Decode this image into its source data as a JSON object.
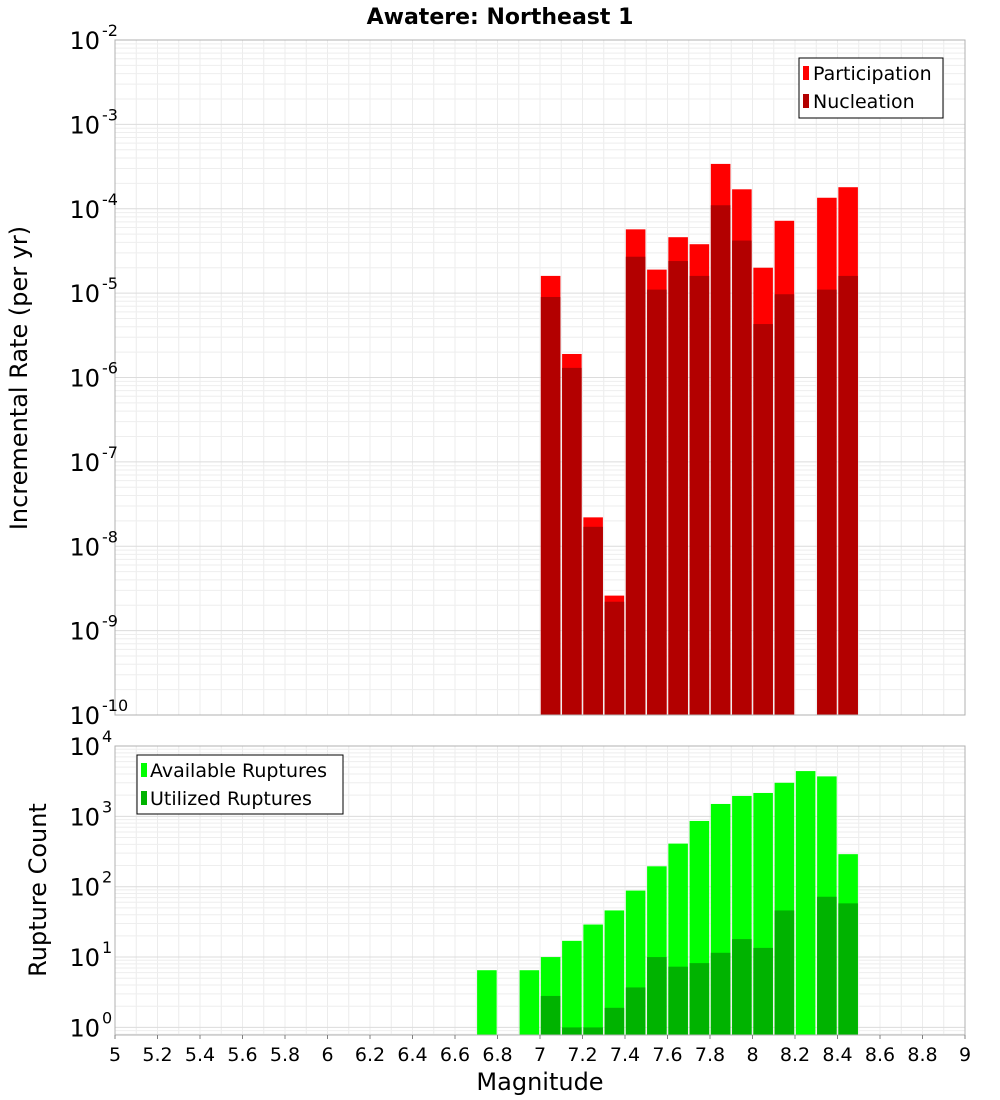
{
  "chart_data": [
    {
      "type": "bar",
      "title": "Awatere: Northeast 1",
      "xlabel": "",
      "ylabel": "Incremental Rate (per yr)",
      "yscale": "log",
      "ylim": [
        1e-10,
        0.01
      ],
      "xlim": [
        5,
        9
      ],
      "ytick_exponents": [
        "-10",
        "-9",
        "-8",
        "-7",
        "-6",
        "-5",
        "-4",
        "-3",
        "-2"
      ],
      "legend_position": "top-right",
      "grid": true,
      "series": [
        {
          "name": "Participation",
          "color": "#ff0000",
          "points": [
            [
              7.05,
              1.6e-05
            ],
            [
              7.15,
              1.9e-06
            ],
            [
              7.25,
              2.2e-08
            ],
            [
              7.35,
              2.6e-09
            ],
            [
              7.45,
              5.7e-05
            ],
            [
              7.55,
              1.9e-05
            ],
            [
              7.65,
              4.6e-05
            ],
            [
              7.75,
              3.8e-05
            ],
            [
              7.85,
              0.00034
            ],
            [
              7.95,
              0.00017
            ],
            [
              8.05,
              2e-05
            ],
            [
              8.15,
              7.2e-05
            ],
            [
              8.35,
              0.000135
            ],
            [
              8.45,
              0.00018
            ]
          ]
        },
        {
          "name": "Nucleation",
          "color": "#b30000",
          "points": [
            [
              7.05,
              9e-06
            ],
            [
              7.15,
              1.3e-06
            ],
            [
              7.25,
              1.7e-08
            ],
            [
              7.35,
              2.2e-09
            ],
            [
              7.45,
              2.7e-05
            ],
            [
              7.55,
              1.1e-05
            ],
            [
              7.65,
              2.4e-05
            ],
            [
              7.75,
              1.6e-05
            ],
            [
              7.85,
              0.00011
            ],
            [
              7.95,
              4.2e-05
            ],
            [
              8.05,
              4.3e-06
            ],
            [
              8.15,
              9.7e-06
            ],
            [
              8.35,
              1.1e-05
            ],
            [
              8.45,
              1.6e-05
            ]
          ]
        }
      ]
    },
    {
      "type": "bar",
      "title": "",
      "xlabel": "Magnitude",
      "ylabel": "Rupture Count",
      "yscale": "log",
      "ylim": [
        0.78,
        10000
      ],
      "xlim": [
        5,
        9
      ],
      "ytick_exponents": [
        "0",
        "1",
        "2",
        "3",
        "4"
      ],
      "legend_position": "top-left",
      "grid": true,
      "x_tick_labels": [
        "5",
        "5.2",
        "5.4",
        "5.6",
        "5.8",
        "6",
        "6.2",
        "6.4",
        "6.6",
        "6.8",
        "7",
        "7.2",
        "7.4",
        "7.6",
        "7.8",
        "8",
        "8.2",
        "8.4",
        "8.6",
        "8.8",
        "9"
      ],
      "series": [
        {
          "name": "Available Ruptures",
          "color": "#00ff00",
          "points": [
            [
              6.75,
              6.5
            ],
            [
              6.95,
              6.5
            ],
            [
              7.05,
              10
            ],
            [
              7.15,
              17
            ],
            [
              7.25,
              29
            ],
            [
              7.35,
              46
            ],
            [
              7.45,
              88
            ],
            [
              7.55,
              195
            ],
            [
              7.65,
              410
            ],
            [
              7.75,
              860
            ],
            [
              7.85,
              1500
            ],
            [
              7.95,
              1950
            ],
            [
              8.05,
              2150
            ],
            [
              8.15,
              3000
            ],
            [
              8.25,
              4400
            ],
            [
              8.35,
              3700
            ],
            [
              8.45,
              290
            ]
          ]
        },
        {
          "name": "Utilized Ruptures",
          "color": "#00b300",
          "points": [
            [
              7.05,
              2.8
            ],
            [
              7.15,
              1.0
            ],
            [
              7.25,
              1.0
            ],
            [
              7.35,
              1.9
            ],
            [
              7.45,
              3.7
            ],
            [
              7.55,
              10
            ],
            [
              7.65,
              7.3
            ],
            [
              7.75,
              8.2
            ],
            [
              7.85,
              11.5
            ],
            [
              7.95,
              18
            ],
            [
              8.05,
              13.5
            ],
            [
              8.15,
              46
            ],
            [
              8.35,
              72
            ],
            [
              8.45,
              58
            ]
          ]
        }
      ]
    }
  ]
}
